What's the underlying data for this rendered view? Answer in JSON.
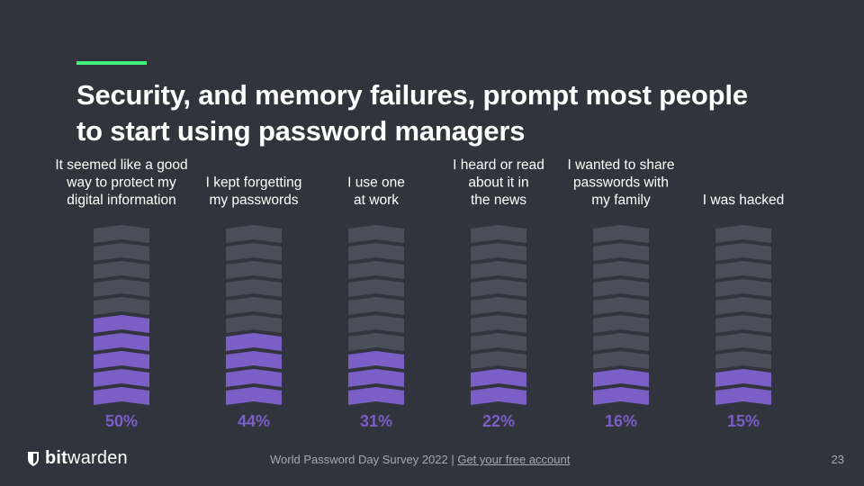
{
  "slide": {
    "title_line1": "Security, and memory failures, prompt most people",
    "title_line2": "to start using password managers",
    "accent_color": "#3ff27a",
    "page_number": "23"
  },
  "footer": {
    "brand_bold": "bit",
    "brand_rest": "warden",
    "logo_icon": "shield-icon",
    "source_text": "World Password Day Survey 2022 | ",
    "source_link": "Get your free account"
  },
  "chart_data": {
    "type": "bar",
    "segments_total": 10,
    "filled_color": "#7b5ec6",
    "empty_color": "#4a4e59",
    "value_color": "#7b5ec6",
    "categories": [
      [
        "It seemed like a good",
        "way to protect my",
        "digital information"
      ],
      [
        "I kept forgetting",
        "my passwords"
      ],
      [
        "I use one",
        "at work"
      ],
      [
        "I heard or read",
        "about it in",
        "the news"
      ],
      [
        "I wanted to share",
        "passwords with",
        "my family"
      ],
      [
        "I was hacked"
      ]
    ],
    "values": [
      50,
      44,
      31,
      22,
      16,
      15
    ],
    "value_labels": [
      "50%",
      "44%",
      "31%",
      "22%",
      "16%",
      "15%"
    ],
    "ylim": [
      0,
      100
    ]
  }
}
